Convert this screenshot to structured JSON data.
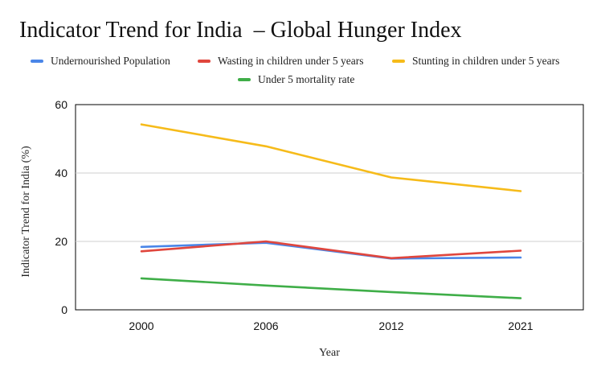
{
  "chart_data": {
    "type": "line",
    "title": "Indicator Trend for India  – Global Hunger Index",
    "xlabel": "Year",
    "ylabel": "Indicator Trend for India (%)",
    "categories": [
      "2000",
      "2006",
      "2012",
      "2021"
    ],
    "ylim": [
      0,
      60
    ],
    "yticks": [
      0,
      20,
      40,
      60
    ],
    "grid": true,
    "legend_position": "top",
    "series": [
      {
        "name": "Undernourished Population",
        "color": "#4a86e8",
        "values": [
          18.4,
          19.6,
          15.0,
          15.3
        ]
      },
      {
        "name": "Wasting in children under 5 years",
        "color": "#e0463d",
        "values": [
          17.1,
          20.0,
          15.1,
          17.3
        ]
      },
      {
        "name": "Stunting in children under 5 years",
        "color": "#f6bb1a",
        "values": [
          54.2,
          47.8,
          38.7,
          34.7
        ]
      },
      {
        "name": "Under 5 mortality rate",
        "color": "#3fae48",
        "values": [
          9.2,
          7.1,
          5.2,
          3.4
        ]
      }
    ]
  }
}
